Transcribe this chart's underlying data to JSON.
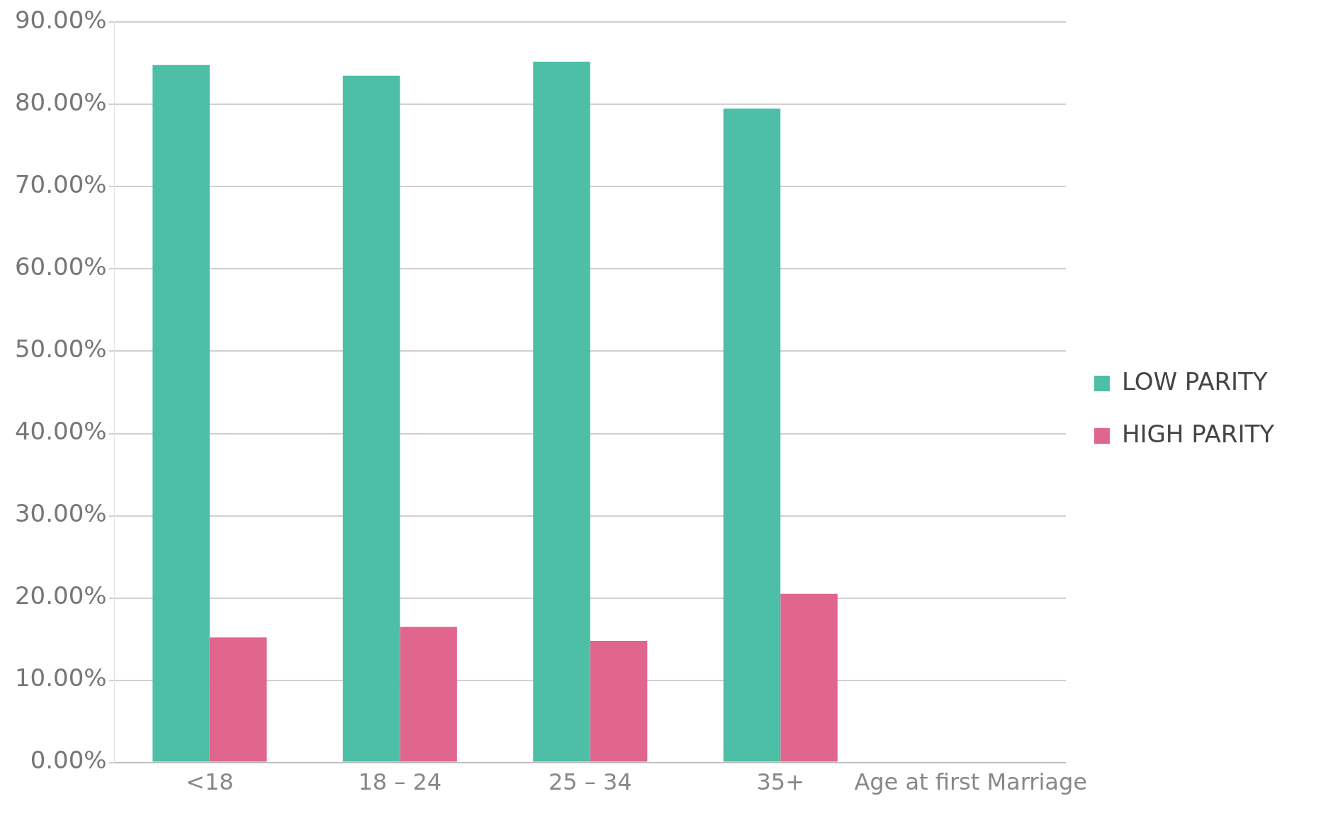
{
  "chart_data": {
    "type": "bar",
    "categories": [
      "<18",
      "18 – 24",
      "25 – 34",
      "35+",
      "Age at first Marriage"
    ],
    "series": [
      {
        "name": "LOW PARITY",
        "color": "#4dbfa6",
        "values": [
          84.8,
          83.5,
          85.2,
          79.5,
          null
        ]
      },
      {
        "name": "HIGH PARITY",
        "color": "#e0668e",
        "values": [
          15.2,
          16.5,
          14.8,
          20.5,
          null
        ]
      }
    ],
    "ylim": [
      0,
      90
    ],
    "yticks": [
      {
        "value": 0,
        "label": "0.00%"
      },
      {
        "value": 10,
        "label": "10.00%"
      },
      {
        "value": 20,
        "label": "20.00%"
      },
      {
        "value": 30,
        "label": "30.00%"
      },
      {
        "value": 40,
        "label": "40.00%"
      },
      {
        "value": 50,
        "label": "50.00%"
      },
      {
        "value": 60,
        "label": "60.00%"
      },
      {
        "value": 70,
        "label": "70.00%"
      },
      {
        "value": 80,
        "label": "80.00%"
      },
      {
        "value": 90,
        "label": "90.00%"
      }
    ],
    "grid": "y",
    "legend": "right"
  }
}
